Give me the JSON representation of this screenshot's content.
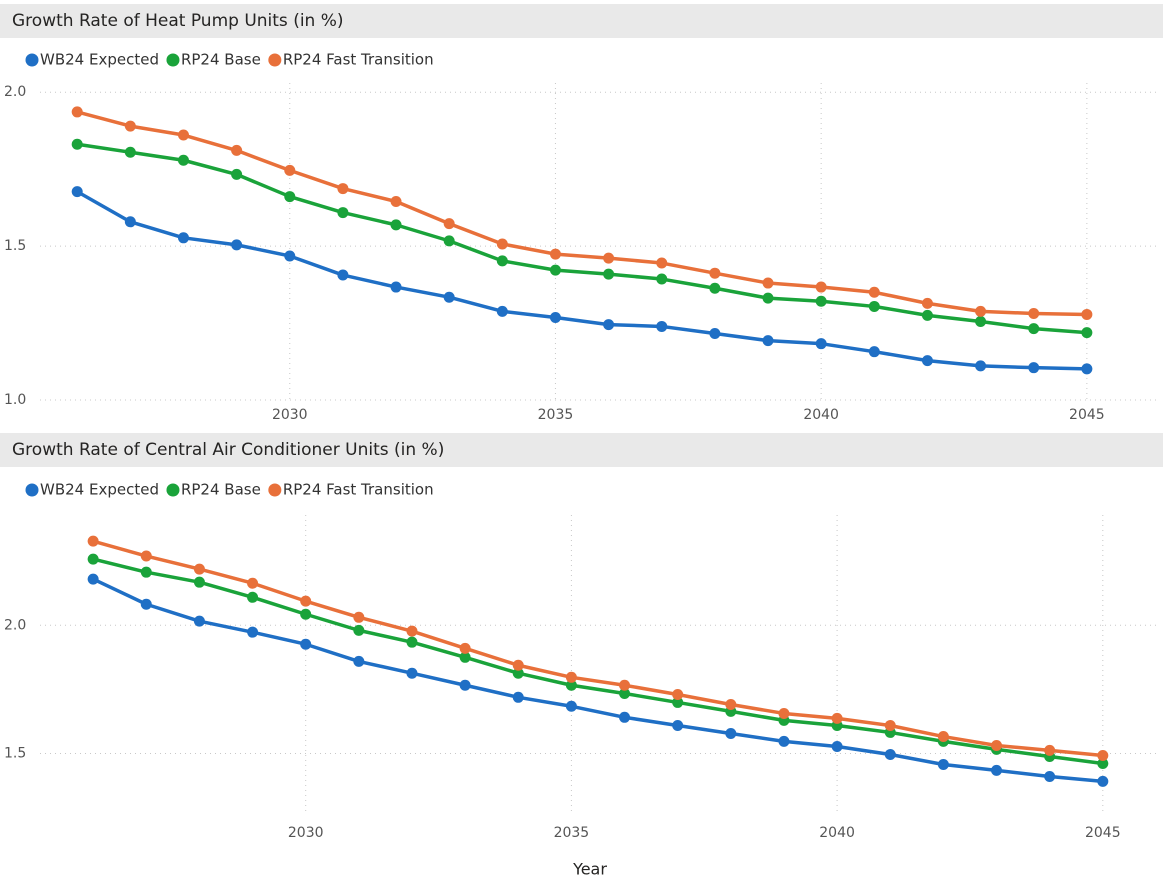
{
  "chart_data": [
    {
      "type": "line",
      "title": "Growth Rate of Heat Pump Units (in %)",
      "x": [
        2026,
        2027,
        2028,
        2029,
        2030,
        2031,
        2032,
        2033,
        2034,
        2035,
        2036,
        2037,
        2038,
        2039,
        2040,
        2041,
        2042,
        2043,
        2044,
        2045
      ],
      "series": [
        {
          "name": "WB24 Expected",
          "color": "#1f6fc5",
          "values": [
            1.677,
            1.579,
            1.527,
            1.504,
            1.468,
            1.406,
            1.367,
            1.334,
            1.288,
            1.268,
            1.245,
            1.239,
            1.216,
            1.193,
            1.183,
            1.157,
            1.128,
            1.111,
            1.105,
            1.101
          ]
        },
        {
          "name": "RP24 Base",
          "color": "#1aa33a",
          "values": [
            1.831,
            1.805,
            1.779,
            1.733,
            1.661,
            1.609,
            1.569,
            1.517,
            1.452,
            1.422,
            1.409,
            1.393,
            1.363,
            1.331,
            1.321,
            1.304,
            1.275,
            1.255,
            1.232,
            1.219
          ]
        },
        {
          "name": "RP24 Fast Transition",
          "color": "#e8703a",
          "values": [
            1.936,
            1.89,
            1.861,
            1.811,
            1.746,
            1.687,
            1.645,
            1.573,
            1.507,
            1.474,
            1.461,
            1.445,
            1.412,
            1.38,
            1.367,
            1.35,
            1.314,
            1.288,
            1.281,
            1.278
          ]
        }
      ],
      "xlim": [
        2025.3,
        2046.0
      ],
      "xticks": [
        2030,
        2035,
        2040,
        2045
      ],
      "ylim": [
        1.0,
        2.03
      ],
      "yticks": [
        {
          "value": 1,
          "label": "1.0"
        },
        1.5,
        {
          "value": 2,
          "label": "2.0"
        }
      ],
      "grid": true
    },
    {
      "type": "line",
      "title": "Growth Rate of Central Air Conditioner Units (in %)",
      "x_label": "Year",
      "x": [
        2026,
        2027,
        2028,
        2029,
        2030,
        2031,
        2032,
        2033,
        2034,
        2035,
        2036,
        2037,
        2038,
        2039,
        2040,
        2041,
        2042,
        2043,
        2044,
        2045
      ],
      "series": [
        {
          "name": "WB24 Expected",
          "color": "#1f6fc5",
          "values": [
            2.18,
            2.082,
            2.016,
            1.973,
            1.926,
            1.859,
            1.813,
            1.766,
            1.719,
            1.684,
            1.641,
            1.609,
            1.578,
            1.547,
            1.527,
            1.496,
            1.457,
            1.434,
            1.41,
            1.391
          ]
        },
        {
          "name": "RP24 Base",
          "color": "#1aa33a",
          "values": [
            2.258,
            2.207,
            2.168,
            2.109,
            2.043,
            1.98,
            1.934,
            1.875,
            1.813,
            1.766,
            1.734,
            1.699,
            1.664,
            1.629,
            1.609,
            1.582,
            1.547,
            1.516,
            1.488,
            1.461
          ]
        },
        {
          "name": "RP24 Fast Transition",
          "color": "#e8703a",
          "values": [
            2.328,
            2.27,
            2.219,
            2.164,
            2.094,
            2.031,
            1.977,
            1.91,
            1.844,
            1.797,
            1.766,
            1.73,
            1.691,
            1.656,
            1.637,
            1.609,
            1.566,
            1.531,
            1.512,
            1.492
          ]
        }
      ],
      "xlim": [
        2025.0,
        2045.7
      ],
      "xticks": [
        2030,
        2035,
        2040,
        2045
      ],
      "ylim": [
        1.26,
        2.43
      ],
      "yticks": [
        1.5,
        {
          "value": 2,
          "label": "2.0"
        }
      ],
      "grid": true
    }
  ]
}
